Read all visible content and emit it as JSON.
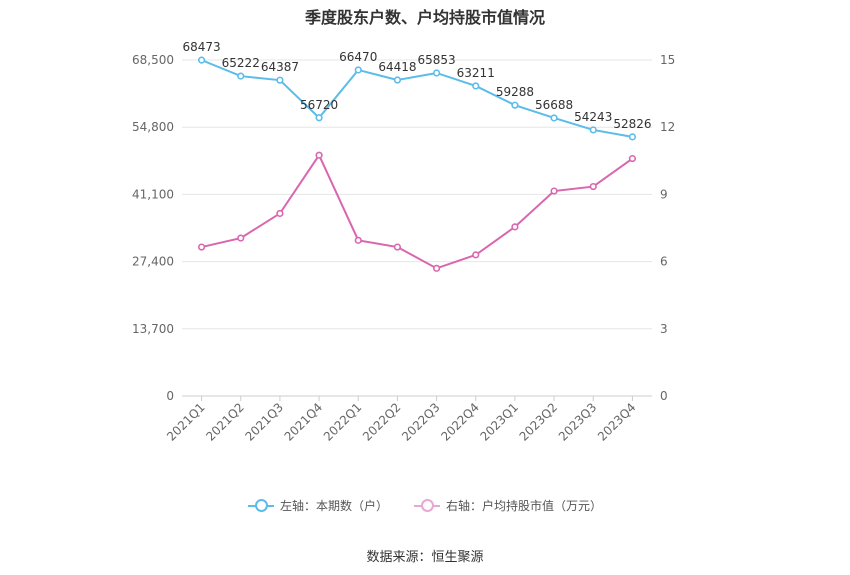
{
  "chart_data": {
    "type": "line",
    "title": "季度股东户数、户均持股市值情况",
    "categories": [
      "2021Q1",
      "2021Q2",
      "2021Q3",
      "2021Q4",
      "2022Q1",
      "2022Q2",
      "2022Q3",
      "2022Q4",
      "2023Q1",
      "2023Q2",
      "2023Q3",
      "2023Q4"
    ],
    "left_axis": {
      "ticks": [
        "0",
        "13,700",
        "27,400",
        "41,100",
        "54,800",
        "68,500"
      ],
      "ylim": [
        0,
        68500
      ]
    },
    "right_axis": {
      "ticks": [
        "0",
        "3",
        "6",
        "9",
        "12",
        "15"
      ],
      "ylim": [
        0,
        15
      ]
    },
    "series": [
      {
        "name": "左轴：本期数（户）",
        "axis": "left",
        "color": "#5bbcea",
        "values": [
          68473,
          65222,
          64387,
          56720,
          66470,
          64418,
          65853,
          63211,
          59288,
          56688,
          54243,
          52826
        ],
        "labels": [
          "68473",
          "65222",
          "64387",
          "56720",
          "66470",
          "64418",
          "65853",
          "63211",
          "59288",
          "56688",
          "54243",
          "52826"
        ]
      },
      {
        "name": "右轴：户均持股市值（万元）",
        "axis": "right",
        "color": "#d966ae",
        "values": [
          6.65,
          7.05,
          8.15,
          10.75,
          6.95,
          6.65,
          5.7,
          6.3,
          7.55,
          9.15,
          9.35,
          10.6
        ]
      }
    ],
    "grid": true,
    "legend_position": "bottom"
  },
  "source": "数据来源：恒生聚源"
}
